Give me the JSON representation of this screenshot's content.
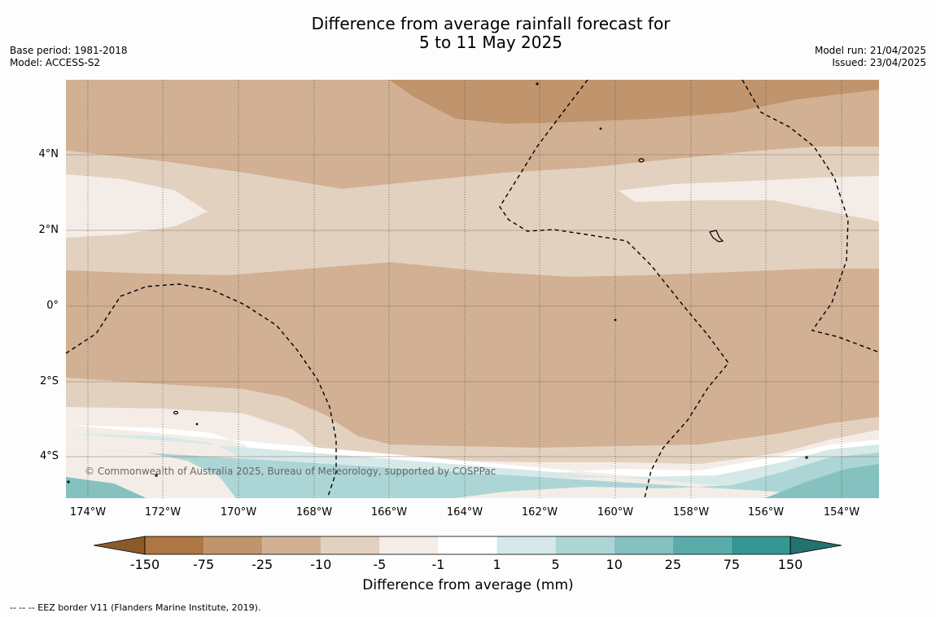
{
  "title_line1": "Difference from average rainfall forecast for",
  "title_line2": "5 to 11 May 2025",
  "base_period": "Base period: 1981-2018",
  "model": "Model: ACCESS-S2",
  "model_run": "Model run: 21/04/2025",
  "issued": "Issued: 23/04/2025",
  "copyright": "© Commonwealth of Australia 2025, Bureau of Meteorology, supported by COSPPac",
  "lat_labels": [
    "4°N",
    "2°N",
    "0°",
    "2°S",
    "4°S"
  ],
  "lon_labels": [
    "174°W",
    "172°W",
    "170°W",
    "168°W",
    "166°W",
    "164°W",
    "162°W",
    "160°W",
    "158°W",
    "156°W",
    "154°W"
  ],
  "colorbar": {
    "title": "Difference from average (mm)",
    "labels": [
      "-150",
      "-75",
      "-25",
      "-10",
      "-5",
      "-1",
      "1",
      "5",
      "10",
      "25",
      "75",
      "150"
    ],
    "colors": [
      "#8a5a2b",
      "#ae7642",
      "#c0946c",
      "#d2b093",
      "#e3d1c0",
      "#f4ede7",
      "#ffffff",
      "#d6e9e8",
      "#acd6d5",
      "#84c1bf",
      "#5aacaa",
      "#349794",
      "#23726f"
    ]
  },
  "footnote": "--  --  -- EEZ border V11 (Flanders Marine Institute, 2019)."
}
